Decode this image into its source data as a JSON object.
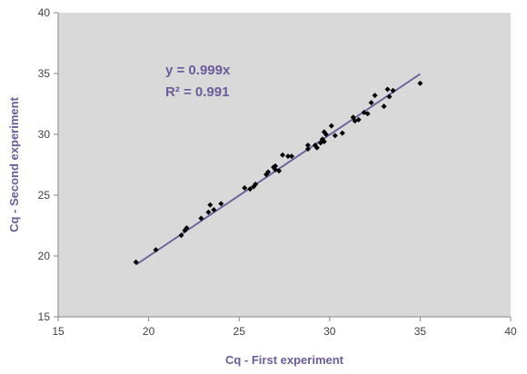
{
  "colors": {
    "plot_background": "#d9d9d9",
    "point": "#000000",
    "trendline": "#6b5b9a",
    "axis_title": "#6b5b9a",
    "equation": "#6b5b9a"
  },
  "chart_data": {
    "type": "scatter",
    "xlabel": "Cq - First experiment",
    "ylabel": "Cq - Second experiment",
    "xlim": [
      15,
      40
    ],
    "ylim": [
      15,
      40
    ],
    "xticks": [
      15,
      20,
      25,
      30,
      35,
      40
    ],
    "yticks": [
      15,
      20,
      25,
      30,
      35,
      40
    ],
    "grid": false,
    "annotations": {
      "equation": "y = 0.999x",
      "r_squared": "R² = 0.991"
    },
    "trendline": {
      "slope": 0.999,
      "x_range": [
        19.3,
        35.0
      ]
    },
    "series": [
      {
        "points": [
          [
            19.3,
            19.5
          ],
          [
            20.4,
            20.5
          ],
          [
            21.8,
            21.7
          ],
          [
            22.0,
            22.1
          ],
          [
            22.1,
            22.3
          ],
          [
            22.9,
            23.1
          ],
          [
            23.3,
            23.6
          ],
          [
            23.4,
            24.2
          ],
          [
            23.6,
            23.8
          ],
          [
            24.0,
            24.3
          ],
          [
            25.3,
            25.6
          ],
          [
            25.6,
            25.5
          ],
          [
            25.8,
            25.7
          ],
          [
            25.9,
            25.9
          ],
          [
            26.5,
            26.7
          ],
          [
            26.6,
            26.9
          ],
          [
            26.9,
            27.3
          ],
          [
            27.0,
            27.1
          ],
          [
            27.0,
            27.4
          ],
          [
            27.2,
            27.0
          ],
          [
            27.4,
            28.3
          ],
          [
            27.7,
            28.2
          ],
          [
            27.9,
            28.2
          ],
          [
            28.8,
            28.8
          ],
          [
            28.8,
            29.1
          ],
          [
            29.2,
            29.1
          ],
          [
            29.3,
            28.9
          ],
          [
            29.5,
            29.3
          ],
          [
            29.6,
            29.6
          ],
          [
            29.7,
            29.4
          ],
          [
            29.7,
            30.2
          ],
          [
            29.8,
            30.0
          ],
          [
            30.1,
            30.7
          ],
          [
            30.3,
            29.9
          ],
          [
            30.7,
            30.1
          ],
          [
            31.3,
            31.4
          ],
          [
            31.4,
            31.1
          ],
          [
            31.6,
            31.2
          ],
          [
            31.9,
            31.8
          ],
          [
            32.1,
            31.7
          ],
          [
            32.3,
            32.6
          ],
          [
            32.5,
            33.2
          ],
          [
            33.0,
            32.3
          ],
          [
            33.2,
            33.7
          ],
          [
            33.3,
            33.1
          ],
          [
            33.5,
            33.6
          ],
          [
            35.0,
            34.2
          ]
        ]
      }
    ]
  }
}
